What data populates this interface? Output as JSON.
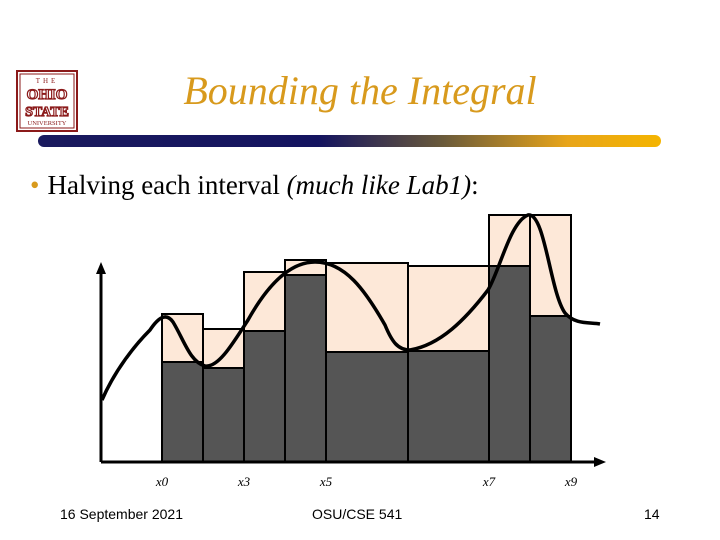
{
  "slide": {
    "title": "Bounding the Integral",
    "bullet_main": "Halving each interval ",
    "bullet_paren": "(much like Lab1)",
    "bullet_end": ":"
  },
  "logo": {
    "line1": "THE",
    "line2": "OHIO",
    "line3": "STATE",
    "line4": "UNIVERSITY"
  },
  "diagram": {
    "x_labels": [
      {
        "text": "x0",
        "index": 0
      },
      {
        "text": "x3",
        "index": 2
      },
      {
        "text": "x5",
        "index": 4
      },
      {
        "text": "x7",
        "index": 6
      },
      {
        "text": "x9",
        "index": 8
      }
    ],
    "upper_rect_color": "#fde8d8",
    "lower_rect_color": "#555555",
    "curve_color": "#000000"
  },
  "footer": {
    "date": "16 September 2021",
    "course": "OSU/CSE 541",
    "page": "14"
  },
  "colors": {
    "accent": "#d89a1d",
    "rule_start": "#1a1a5e",
    "rule_end": "#f4b400"
  }
}
